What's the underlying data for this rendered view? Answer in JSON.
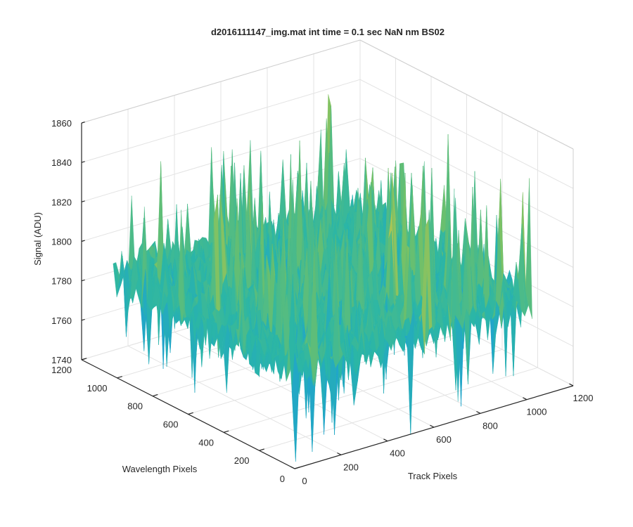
{
  "chart_data": {
    "type": "surface",
    "title": "d2016111147_img.mat int time = 0.1 sec  NaN nm BS02",
    "xlabel": "Track Pixels",
    "ylabel": "Wavelength Pixels",
    "zlabel": "Signal (ADU)",
    "xlim": [
      0,
      1200
    ],
    "ylim": [
      0,
      1200
    ],
    "zlim": [
      1740,
      1860
    ],
    "x_ticks": [
      "0",
      "200",
      "400",
      "600",
      "800",
      "1000",
      "1200"
    ],
    "y_ticks": [
      "0",
      "200",
      "400",
      "600",
      "800",
      "1000",
      "1200"
    ],
    "z_ticks": [
      "1740",
      "1760",
      "1780",
      "1800",
      "1820",
      "1840",
      "1860"
    ],
    "data_extent": {
      "x": [
        1,
        1024
      ],
      "y": [
        1,
        1024
      ]
    },
    "signal_mean": 1790,
    "signal_range": [
      1748,
      1852
    ],
    "colormap": [
      "#0072bd",
      "#1d9fd8",
      "#2bb6a6",
      "#6fc06a",
      "#c7c84a",
      "#f9e04b"
    ],
    "grid": true,
    "box_outline": true,
    "view": "3d"
  }
}
